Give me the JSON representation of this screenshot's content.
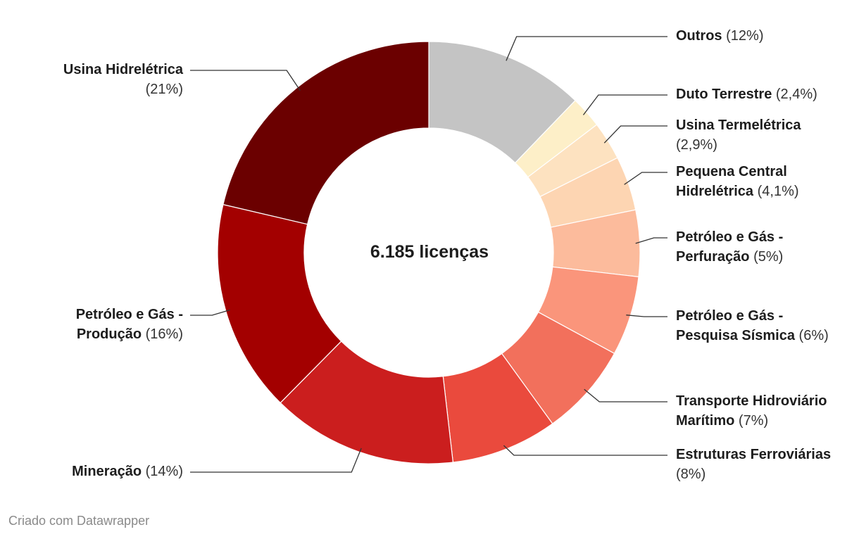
{
  "chart_data": {
    "type": "pie",
    "center_label": "6.185 licenças",
    "slices": [
      {
        "name": "Outros",
        "percent_label": "(12%)",
        "value": 12.0,
        "color": "#c4c4c4"
      },
      {
        "name": "Duto Terrestre",
        "percent_label": "(2,4%)",
        "value": 2.4,
        "color": "#fdefc8"
      },
      {
        "name": "Usina Termelétrica",
        "percent_label": "(2,9%)",
        "value": 2.9,
        "color": "#fde2c0"
      },
      {
        "name": "Pequena Central Hidrelétrica",
        "percent_label": "(4,1%)",
        "value": 4.1,
        "color": "#fdd5b2"
      },
      {
        "name": "Petróleo e Gás - Perfuração",
        "percent_label": "(5%)",
        "value": 5.0,
        "color": "#fcbb9c"
      },
      {
        "name": "Petróleo e Gás - Pesquisa Sísmica",
        "percent_label": "(6%)",
        "value": 6.0,
        "color": "#fa957b"
      },
      {
        "name": "Transporte Hidroviário Marítimo",
        "percent_label": "(7%)",
        "value": 7.0,
        "color": "#f2705c"
      },
      {
        "name": "Estruturas Ferroviárias",
        "percent_label": "(8%)",
        "value": 8.0,
        "color": "#ea4a3d"
      },
      {
        "name": "Mineração",
        "percent_label": "(14%)",
        "value": 14.0,
        "color": "#cb1e1e"
      },
      {
        "name": "Petróleo e Gás - Produção",
        "percent_label": "(16%)",
        "value": 16.0,
        "color": "#a30000"
      },
      {
        "name": "Usina Hidrelétrica",
        "percent_label": "(21%)",
        "value": 21.0,
        "color": "#6b0000"
      }
    ]
  },
  "credit": "Criado com Datawrapper"
}
